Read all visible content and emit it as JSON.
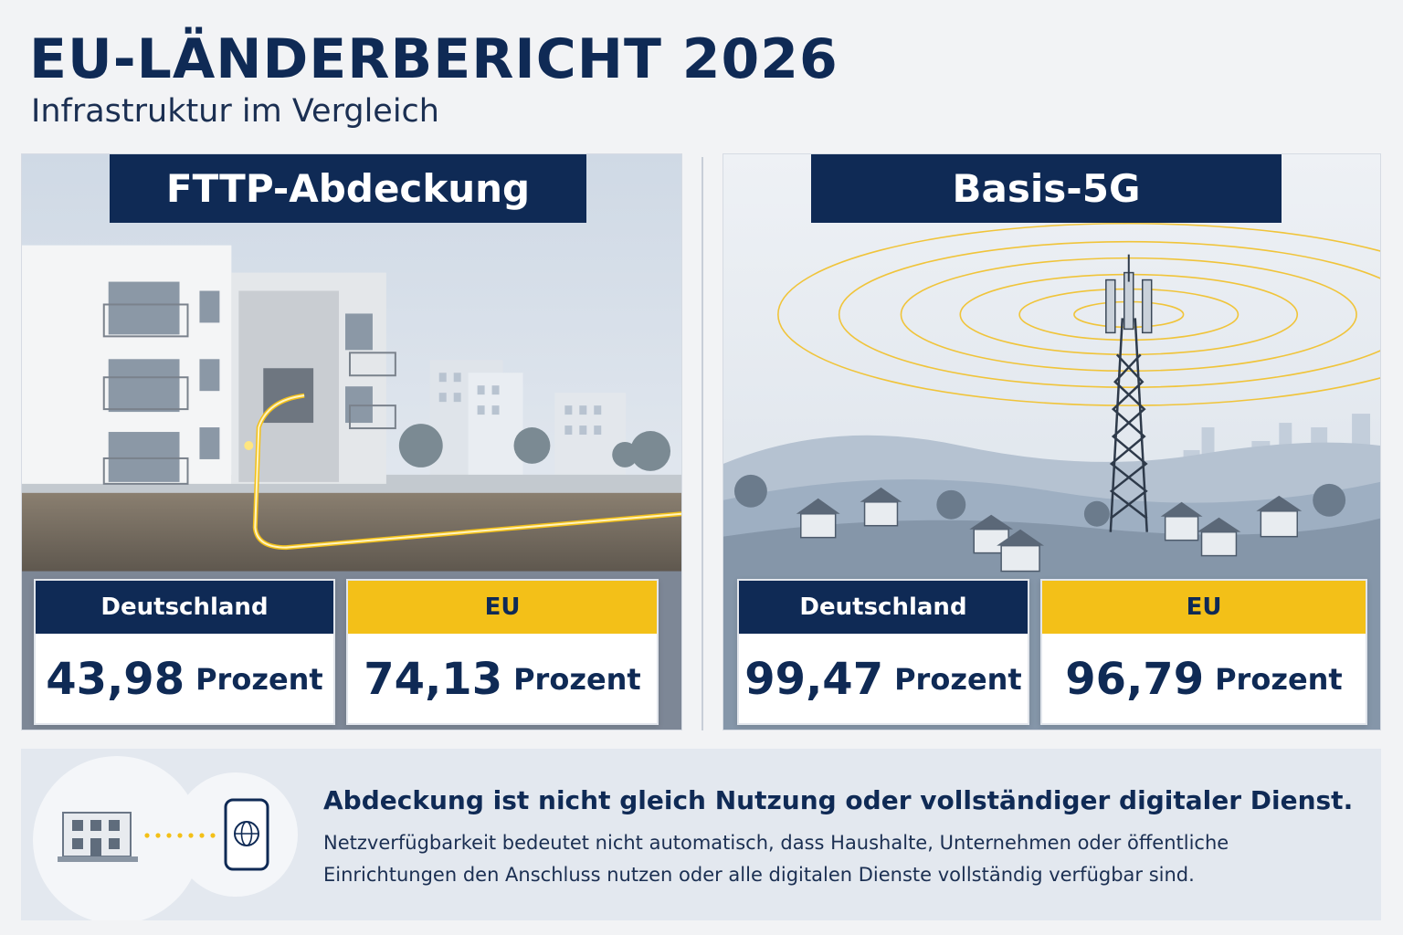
{
  "header": {
    "title": "EU-LÄNDERBERICHT 2026",
    "subtitle": "Infrastruktur im Vergleich"
  },
  "panels": [
    {
      "heading": "FTTP-Abdeckung",
      "illustration": "apartment-building-fiber-connection",
      "stats": [
        {
          "label": "Deutschland",
          "value": "43,98",
          "unit": "Prozent"
        },
        {
          "label": "EU",
          "value": "74,13",
          "unit": "Prozent"
        }
      ]
    },
    {
      "heading": "Basis-5G",
      "illustration": "cell-tower-village-signal",
      "stats": [
        {
          "label": "Deutschland",
          "value": "99,47",
          "unit": "Prozent"
        },
        {
          "label": "EU",
          "value": "96,79",
          "unit": "Prozent"
        }
      ]
    }
  ],
  "footer": {
    "headline": "Abdeckung ist nicht gleich Nutzung oder vollständiger digitaler Dienst.",
    "body": "Netzverfügbarkeit bedeutet nicht automatisch, dass Haushalte, Unternehmen oder öffentliche Einrichtungen den Anschluss nutzen oder alle digitalen Dienste vollständig verfügbar sind.",
    "icons": [
      "building-icon",
      "smartphone-globe-icon"
    ]
  },
  "colors": {
    "navy": "#0f2a55",
    "yellow": "#f3c018",
    "background": "#f2f3f5"
  }
}
